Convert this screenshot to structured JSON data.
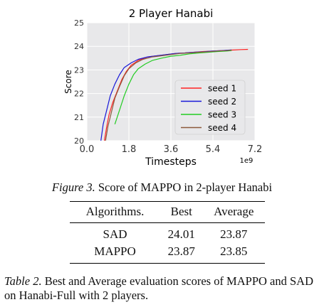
{
  "chart_data": {
    "type": "line",
    "title": "2 Player Hanabi",
    "xlabel": "Timesteps",
    "ylabel": "Score",
    "x_multiplier": "1e9",
    "xlim": [
      0.0,
      7.2
    ],
    "ylim": [
      20,
      25
    ],
    "x_ticks": [
      "0.0",
      "1.8",
      "3.6",
      "5.4",
      "7.2"
    ],
    "y_ticks": [
      "20",
      "21",
      "22",
      "23",
      "24",
      "25"
    ],
    "grid": true,
    "legend_position": "lower-right",
    "series": [
      {
        "name": "seed 1",
        "color": "#ff2222",
        "points": [
          [
            0.75,
            20
          ],
          [
            0.85,
            20.6
          ],
          [
            0.95,
            21.1
          ],
          [
            1.1,
            21.6
          ],
          [
            1.3,
            22.1
          ],
          [
            1.5,
            22.6
          ],
          [
            1.7,
            22.95
          ],
          [
            1.9,
            23.2
          ],
          [
            2.2,
            23.4
          ],
          [
            2.6,
            23.55
          ],
          [
            3.0,
            23.6
          ],
          [
            3.4,
            23.65
          ],
          [
            3.8,
            23.7
          ],
          [
            4.2,
            23.72
          ],
          [
            4.6,
            23.75
          ],
          [
            5.0,
            23.78
          ],
          [
            5.4,
            23.8
          ],
          [
            5.8,
            23.82
          ],
          [
            6.2,
            23.84
          ],
          [
            6.6,
            23.86
          ],
          [
            6.9,
            23.87
          ]
        ]
      },
      {
        "name": "seed 2",
        "color": "#1818d8",
        "points": [
          [
            0.6,
            20
          ],
          [
            0.7,
            20.7
          ],
          [
            0.85,
            21.3
          ],
          [
            1.0,
            21.9
          ],
          [
            1.2,
            22.4
          ],
          [
            1.4,
            22.8
          ],
          [
            1.6,
            23.1
          ],
          [
            1.9,
            23.3
          ],
          [
            2.2,
            23.45
          ],
          [
            2.6,
            23.55
          ],
          [
            3.0,
            23.6
          ],
          [
            3.4,
            23.65
          ],
          [
            3.8,
            23.7
          ],
          [
            4.2,
            23.72
          ],
          [
            4.6,
            23.75
          ],
          [
            5.0,
            23.77
          ],
          [
            5.4,
            23.8
          ],
          [
            5.8,
            23.82
          ],
          [
            6.2,
            23.85
          ]
        ]
      },
      {
        "name": "seed 3",
        "color": "#22cc22",
        "points": [
          [
            1.2,
            20.7
          ],
          [
            1.4,
            21.3
          ],
          [
            1.6,
            21.9
          ],
          [
            1.8,
            22.4
          ],
          [
            2.0,
            22.8
          ],
          [
            2.2,
            23.05
          ],
          [
            2.5,
            23.25
          ],
          [
            2.8,
            23.4
          ],
          [
            3.2,
            23.5
          ],
          [
            3.6,
            23.58
          ],
          [
            4.0,
            23.62
          ],
          [
            4.4,
            23.68
          ],
          [
            4.8,
            23.72
          ],
          [
            5.2,
            23.75
          ],
          [
            5.6,
            23.78
          ],
          [
            6.0,
            23.8
          ],
          [
            6.2,
            23.82
          ]
        ]
      },
      {
        "name": "seed 4",
        "color": "#8c5a3c",
        "points": [
          [
            0.8,
            20
          ],
          [
            0.9,
            20.6
          ],
          [
            1.05,
            21.2
          ],
          [
            1.2,
            21.8
          ],
          [
            1.4,
            22.3
          ],
          [
            1.6,
            22.75
          ],
          [
            1.8,
            23.05
          ],
          [
            2.1,
            23.3
          ],
          [
            2.4,
            23.45
          ],
          [
            2.8,
            23.55
          ],
          [
            3.2,
            23.6
          ],
          [
            3.6,
            23.65
          ],
          [
            4.0,
            23.7
          ],
          [
            4.4,
            23.72
          ],
          [
            4.8,
            23.75
          ],
          [
            5.2,
            23.77
          ],
          [
            5.6,
            23.8
          ],
          [
            6.0,
            23.82
          ],
          [
            6.2,
            23.84
          ]
        ]
      }
    ]
  },
  "figure_caption": {
    "label": "Figure 3.",
    "text": "Score of MAPPO in 2-player Hanabi"
  },
  "table": {
    "headers": [
      "Algorithms.",
      "Best",
      "Average"
    ],
    "rows": [
      [
        "SAD",
        "24.01",
        "23.87"
      ],
      [
        "MAPPO",
        "23.87",
        "23.85"
      ]
    ]
  },
  "table_caption": {
    "label": "Table 2.",
    "text": "Best and Average evaluation scores of MAPPO and SAD on Hanabi-Full with 2 players."
  }
}
